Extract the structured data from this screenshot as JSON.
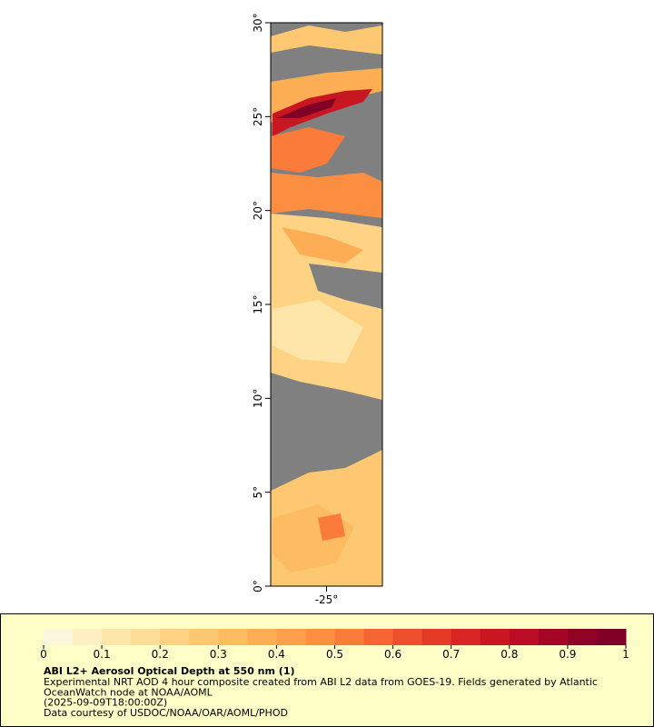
{
  "map": {
    "ylim": [
      0,
      30
    ],
    "yticks": [
      {
        "value": 0,
        "label": "0°"
      },
      {
        "value": 5,
        "label": "5°"
      },
      {
        "value": 10,
        "label": "10°"
      },
      {
        "value": 15,
        "label": "15°"
      },
      {
        "value": 20,
        "label": "20°"
      },
      {
        "value": 25,
        "label": "25°"
      },
      {
        "value": 30,
        "label": "30°"
      }
    ],
    "xlim": [
      -28,
      -22
    ],
    "xticks": [
      {
        "value": -25,
        "label": "-25°"
      }
    ]
  },
  "colorbar": {
    "lim": [
      0,
      1
    ],
    "ticks": [
      0,
      0.1,
      0.2,
      0.3,
      0.4,
      0.5,
      0.6,
      0.7,
      0.8,
      0.9,
      1
    ],
    "colors": [
      "#fff7dc",
      "#ffefc2",
      "#fee6aa",
      "#fedd96",
      "#fed384",
      "#fec873",
      "#febc62",
      "#fdae55",
      "#fd9f4b",
      "#fc8e42",
      "#fa7b3a",
      "#f56633",
      "#ee502d",
      "#e43a28",
      "#d82624",
      "#c91722",
      "#b80d24",
      "#a40625",
      "#900226",
      "#800026"
    ]
  },
  "caption": {
    "title": "ABI L2+ Aerosol Optical Depth at 550 nm (1)",
    "lines": [
      "Experimental NRT AOD 4 hour composite created from ABI L2 data from GOES-19. Fields generated by Atlantic",
      "OceanWatch node at NOAA/AOML",
      "(2025-09-09T18:00:00Z)",
      "Data courtesy of USDOC/NOAA/OAR/AOML/PHOD"
    ]
  }
}
